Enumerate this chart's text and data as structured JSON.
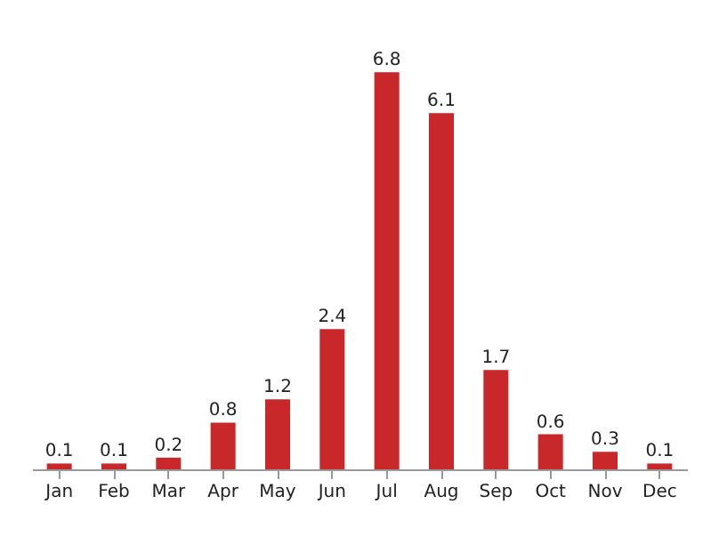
{
  "chart_data": {
    "type": "bar",
    "categories": [
      "Jan",
      "Feb",
      "Mar",
      "Apr",
      "May",
      "Jun",
      "Jul",
      "Aug",
      "Sep",
      "Oct",
      "Nov",
      "Dec"
    ],
    "values": [
      0.1,
      0.1,
      0.2,
      0.8,
      1.2,
      2.4,
      6.8,
      6.1,
      1.7,
      0.6,
      0.3,
      0.1
    ],
    "color": "#c8282a",
    "data_labels": true
  }
}
